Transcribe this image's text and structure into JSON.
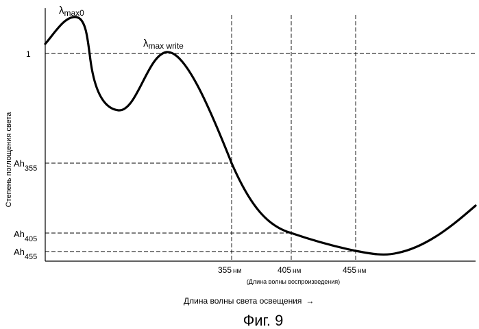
{
  "figure": {
    "caption": "Фиг. 9",
    "ylabel": "Степень поглощения света",
    "xlabel": "Длина волны света освещения",
    "xlabel_arrow": "→",
    "sublabel": "(Длина волны воспроизведения)"
  },
  "peaks": {
    "max0": {
      "base": "λ",
      "sub": "max0"
    },
    "write": {
      "base": "λ",
      "sub": "max write"
    }
  },
  "y_marks": {
    "one": "1",
    "ah355": {
      "base": "Ah",
      "sub": "355"
    },
    "ah405": {
      "base": "Ah",
      "sub": "405"
    },
    "ah455": {
      "base": "Ah",
      "sub": "455"
    }
  },
  "x_marks": {
    "m355": {
      "value": "355",
      "unit": "нм"
    },
    "m405": {
      "value": "405",
      "unit": "нм"
    },
    "m455": {
      "value": "455",
      "unit": "нм"
    }
  }
}
